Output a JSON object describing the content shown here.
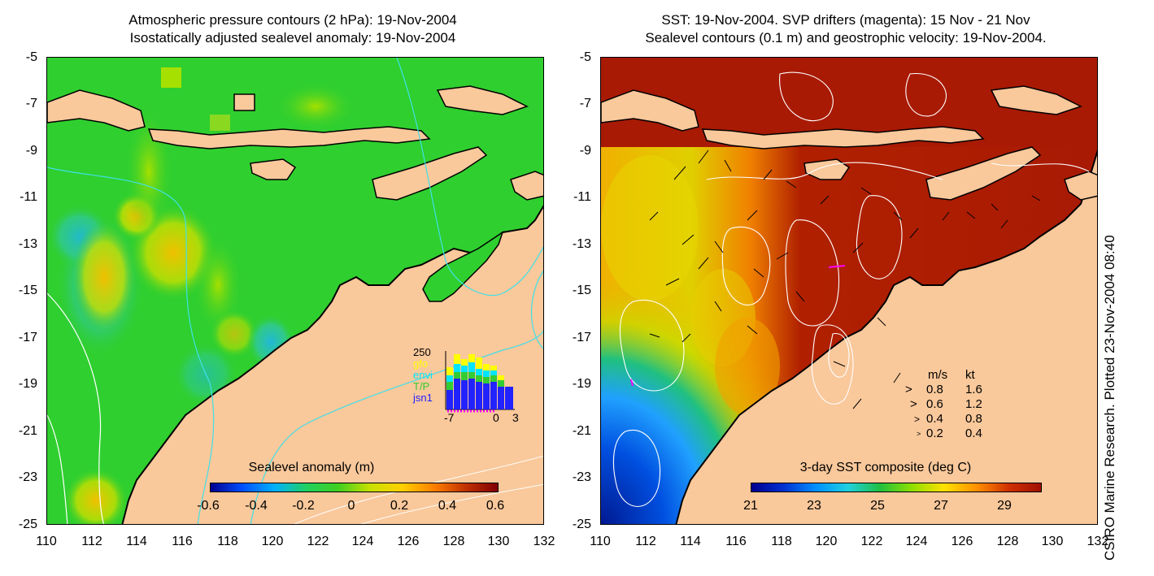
{
  "left_panel": {
    "title_line1": "Atmospheric pressure contours (2 hPa): 19-Nov-2004",
    "title_line2": "Isostatically adjusted sealevel anomaly: 19-Nov-2004",
    "colorbar_title": "Sealevel anomaly (m)",
    "colorbar_ticks": [
      "-0.6",
      "-0.4",
      "-0.2",
      "0",
      "0.2",
      "0.4",
      "0.6"
    ],
    "histogram": {
      "ymax_label": "250",
      "legend": [
        "gfo",
        "envi",
        "T/P",
        "jsn1"
      ],
      "legend_colors": [
        "#ffff00",
        "#00e5ff",
        "#33cc33",
        "#2222ff"
      ],
      "x_ticks": [
        "-7",
        "0",
        "3"
      ]
    }
  },
  "right_panel": {
    "title_line1": "SST: 19-Nov-2004. SVP drifters (magenta): 15 Nov - 21 Nov",
    "title_line2": "Sealevel contours (0.1 m) and geostrophic velocity: 19-Nov-2004.",
    "colorbar_title": "3-day SST composite (deg C)",
    "colorbar_ticks": [
      "21",
      "23",
      "25",
      "27",
      "29"
    ],
    "velocity_legend": {
      "header_ms": "m/s",
      "header_kt": "kt",
      "rows": [
        {
          "ms": "0.8",
          "kt": "1.6"
        },
        {
          "ms": "0.6",
          "kt": "1.2"
        },
        {
          "ms": "0.4",
          "kt": "0.8"
        },
        {
          "ms": "0.2",
          "kt": "0.4"
        }
      ]
    }
  },
  "axes": {
    "y_ticks": [
      "-5",
      "-7",
      "-9",
      "-11",
      "-13",
      "-15",
      "-17",
      "-19",
      "-21",
      "-23",
      "-25"
    ],
    "x_ticks": [
      "110",
      "112",
      "114",
      "116",
      "118",
      "120",
      "122",
      "124",
      "126",
      "128",
      "130",
      "132"
    ]
  },
  "side_note": "CSIRO Marine Research. Plotted 23-Nov-2004 08:40",
  "colors": {
    "land": "#f9c89b",
    "sealevel_background": "#2fcf2f",
    "sst_warm": "#a81a04"
  }
}
